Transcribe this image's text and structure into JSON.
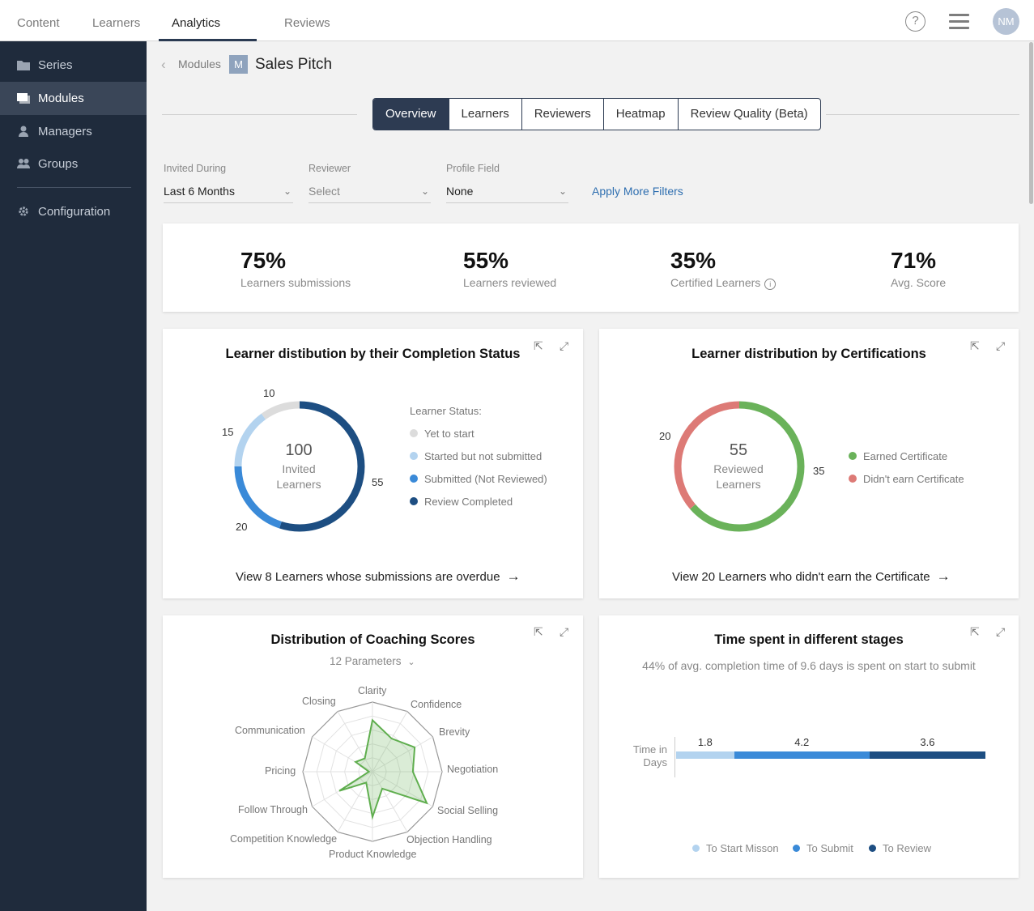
{
  "topnav": {
    "tabs": [
      "Content",
      "Learners",
      "Analytics",
      "Reviews"
    ],
    "avatar": "NM",
    "help": "?"
  },
  "sidebar": {
    "items": [
      {
        "label": "Series",
        "icon": "folder-icon"
      },
      {
        "label": "Modules",
        "icon": "modules-icon"
      },
      {
        "label": "Managers",
        "icon": "manager-icon"
      },
      {
        "label": "Groups",
        "icon": "groups-icon"
      },
      {
        "label": "Configuration",
        "icon": "gear-icon"
      }
    ],
    "active": "Modules"
  },
  "breadcrumb": {
    "back": "Modules",
    "badge": "M",
    "title": "Sales Pitch"
  },
  "tabs": [
    "Overview",
    "Learners",
    "Reviewers",
    "Heatmap",
    "Review Quality (Beta)"
  ],
  "filters": {
    "invited_label": "Invited During",
    "invited_value": "Last 6 Months",
    "reviewer_label": "Reviewer",
    "reviewer_value": "Select",
    "profile_label": "Profile Field",
    "profile_value": "None",
    "more": "Apply More Filters"
  },
  "stats": [
    {
      "value": "75%",
      "label": "Learners submissions"
    },
    {
      "value": "55%",
      "label": "Learners reviewed"
    },
    {
      "value": "35%",
      "label": "Certified Learners"
    },
    {
      "value": "71%",
      "label": "Avg. Score"
    }
  ],
  "completion": {
    "title": "Learner distibution by their Completion Status",
    "center_value": "100",
    "center_label1": "Invited",
    "center_label2": "Learners",
    "legend_title": "Learner Status:",
    "segments": [
      {
        "name": "Yet to start",
        "value": 10,
        "color": "#dcdcdc"
      },
      {
        "name": "Started but not submitted",
        "value": 15,
        "color": "#b3d3ef"
      },
      {
        "name": "Submitted (Not Reviewed)",
        "value": 20,
        "color": "#3a8ad8"
      },
      {
        "name": "Review Completed",
        "value": 55,
        "color": "#1d4e82"
      }
    ],
    "labels": {
      "a": "10",
      "b": "15",
      "c": "20",
      "d": "55"
    },
    "link": "View 8 Learners whose submissions are overdue"
  },
  "certifications": {
    "title": "Learner distribution by Certifications",
    "center_value": "55",
    "center_label1": "Reviewed",
    "center_label2": "Learners",
    "segments": [
      {
        "name": "Earned Certificate",
        "value": 35,
        "color": "#6ab25a"
      },
      {
        "name": "Didn't earn Certificate",
        "value": 20,
        "color": "#dd7a76"
      }
    ],
    "labels": {
      "a": "20",
      "b": "35"
    },
    "link": "View 20 Learners who didn't earn the Certificate"
  },
  "coaching": {
    "title": "Distribution of Coaching Scores",
    "params": "12 Parameters",
    "axes": [
      "Clarity",
      "Confidence",
      "Brevity",
      "Negotiation",
      "Social Selling",
      "Objection Handling",
      "Product Knowledge",
      "Competition Knowledge",
      "Follow Through",
      "Pricing",
      "Communication",
      "Closing"
    ],
    "values": [
      0.74,
      0.55,
      0.7,
      0.58,
      0.9,
      0.28,
      0.65,
      0.18,
      0.55,
      0.05,
      0.28,
      0.22
    ]
  },
  "time_spent": {
    "title": "Time spent in different stages",
    "subtitle": "44% of avg. completion time of 9.6 days is spent on start to submit",
    "axis_label1": "Time in",
    "axis_label2": "Days",
    "chart_data": {
      "type": "bar",
      "categories": [
        "To Start Misson",
        "To Submit",
        "To Review"
      ],
      "values": [
        1.8,
        4.2,
        3.6
      ],
      "colors": [
        "#b3d3ef",
        "#3a8ad8",
        "#1d4e82"
      ]
    },
    "value_labels": [
      "1.8",
      "4.2",
      "3.6"
    ]
  }
}
